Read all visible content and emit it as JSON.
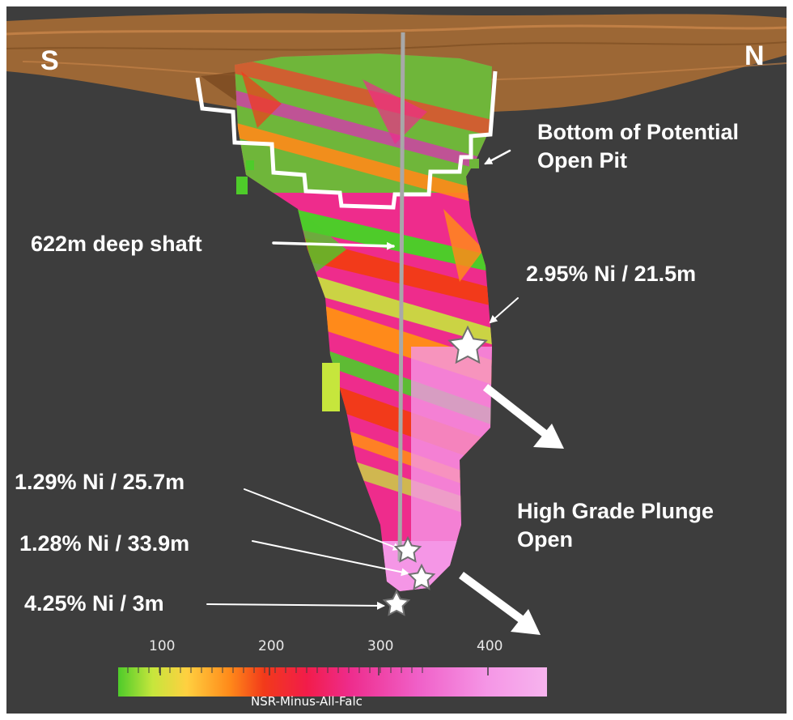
{
  "compass": {
    "south": "S",
    "north": "N"
  },
  "labels": {
    "open_pit": "Bottom of Potential\nOpen Pit",
    "shaft": "622m deep shaft",
    "intercept_upper": "2.95% Ni / 21.5m",
    "plunge": "High Grade Plunge\nOpen",
    "intercept_1": "1.29% Ni / 25.7m",
    "intercept_2": "1.28% Ni / 33.9m",
    "intercept_3": "4.25% Ni / 3m"
  },
  "legend": {
    "title": "NSR-Minus-All-Falc",
    "ticks": [
      "100",
      "200",
      "300",
      "400"
    ],
    "gradient_stops": [
      "#4ecb2a",
      "#c6e63c",
      "#ffd040",
      "#ff8a1a",
      "#f23a1a",
      "#f21c4a",
      "#ee2c8c",
      "#f060c8",
      "#f596e6",
      "#f7b4ee"
    ]
  },
  "colors": {
    "background": "#3d3d3d",
    "terrain": "#a46a34",
    "shaft": "#a8a8a8",
    "annotation": "#ffffff"
  }
}
